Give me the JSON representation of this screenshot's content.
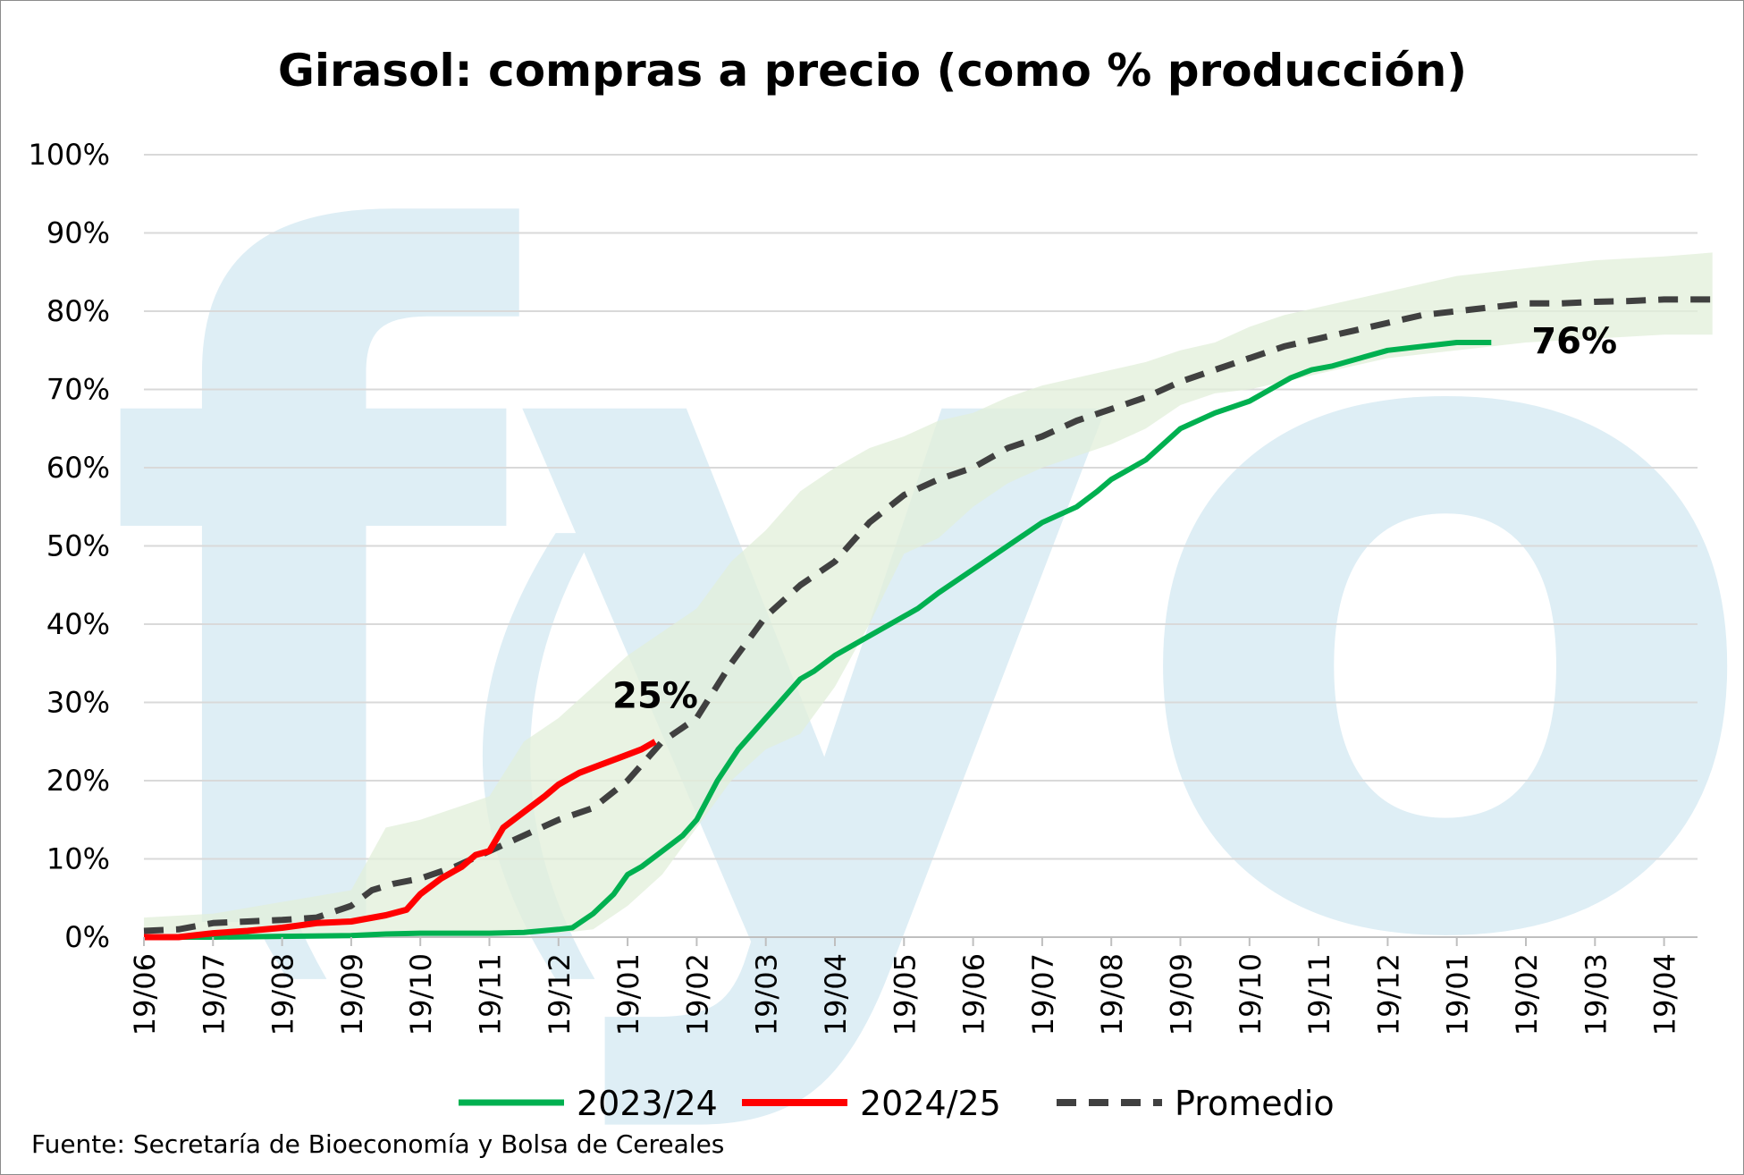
{
  "colors": {
    "s2023": "#00b050",
    "s2024": "#ff0000",
    "avg": "#404040",
    "band": "#e2efda",
    "watermark": "#deeef5",
    "grid": "#d9d9d9"
  },
  "source": "Fuente: Secretaría de Bioeconomía y Bolsa de Cereales",
  "watermark": "fyo",
  "chart_data": {
    "type": "line",
    "title": "Girasol: compras a precio (como % producción)",
    "xlabel": "",
    "ylabel": "",
    "ylim": [
      0,
      100
    ],
    "yticks": [
      "0%",
      "10%",
      "20%",
      "30%",
      "40%",
      "50%",
      "60%",
      "70%",
      "80%",
      "90%",
      "100%"
    ],
    "xticks": [
      "19/06",
      "19/07",
      "19/08",
      "19/09",
      "19/10",
      "19/11",
      "19/12",
      "19/01",
      "19/02",
      "19/03",
      "19/04",
      "19/05",
      "19/06",
      "19/07",
      "19/08",
      "19/09",
      "19/10",
      "19/11",
      "19/12",
      "19/01",
      "19/02",
      "19/03",
      "19/04"
    ],
    "xlim": [
      0,
      22.7
    ],
    "legend_position": "bottom",
    "grid": true,
    "series": [
      {
        "name": "2023/24",
        "x": [
          0,
          0.5,
          1,
          2,
          3,
          3.5,
          4,
          5,
          5.5,
          6,
          6.2,
          6.5,
          6.8,
          7,
          7.2,
          7.5,
          7.8,
          8,
          8.3,
          8.6,
          9,
          9.2,
          9.5,
          9.7,
          10,
          10.5,
          11,
          11.2,
          11.5,
          12,
          12.5,
          13,
          13.5,
          13.8,
          14,
          14.5,
          15,
          15.5,
          16,
          16.3,
          16.6,
          16.9,
          17.2,
          17.6,
          18,
          18.5,
          19,
          19.5
        ],
        "values": [
          0,
          0,
          0,
          0.1,
          0.2,
          0.4,
          0.5,
          0.5,
          0.6,
          1,
          1.2,
          3,
          5.5,
          8,
          9,
          11,
          13,
          15,
          20,
          24,
          28,
          30,
          33,
          34,
          36,
          38.5,
          41,
          42,
          44,
          47,
          50,
          53,
          55,
          57,
          58.5,
          61,
          65,
          67,
          68.5,
          70,
          71.5,
          72.5,
          73,
          74,
          75,
          75.5,
          76,
          76
        ]
      },
      {
        "name": "2024/25",
        "x": [
          0,
          0.5,
          1,
          1.5,
          2,
          2.5,
          3,
          3.5,
          3.8,
          4,
          4.3,
          4.6,
          4.8,
          5,
          5.2,
          5.5,
          5.8,
          6,
          6.3,
          6.6,
          6.9,
          7.2,
          7.4
        ],
        "values": [
          0,
          0,
          0.5,
          0.8,
          1.2,
          1.8,
          2,
          2.8,
          3.5,
          5.5,
          7.5,
          9,
          10.5,
          11,
          14,
          16,
          18,
          19.5,
          21,
          22,
          23,
          24,
          25
        ]
      },
      {
        "name": "Promedio",
        "x": [
          0,
          0.5,
          1,
          1.5,
          2,
          2.5,
          3,
          3.3,
          3.6,
          4,
          4.5,
          5,
          5.5,
          6,
          6.5,
          7,
          7.5,
          8,
          8.5,
          9,
          9.5,
          10,
          10.5,
          11,
          11.5,
          12,
          12.5,
          13,
          13.5,
          14,
          14.5,
          15,
          15.5,
          16,
          16.5,
          17,
          17.5,
          18,
          18.5,
          19,
          19.5,
          20,
          20.5,
          21,
          21.5,
          22,
          22.7
        ],
        "values": [
          0.8,
          1,
          1.8,
          2,
          2.2,
          2.5,
          4,
          6,
          6.8,
          7.5,
          9,
          11,
          13,
          15,
          16.5,
          20,
          25,
          28,
          35,
          41,
          45,
          48,
          53,
          56.5,
          58.5,
          60,
          62.5,
          64,
          66,
          67.5,
          69,
          71,
          72.5,
          74,
          75.5,
          76.5,
          77.5,
          78.5,
          79.5,
          80,
          80.5,
          81,
          81,
          81.2,
          81.3,
          81.5,
          81.5
        ]
      }
    ],
    "range_band": {
      "x": [
        0,
        1,
        2,
        3,
        3.5,
        4,
        5,
        5.5,
        6,
        6.5,
        7,
        7.5,
        8,
        8.5,
        9,
        9.5,
        10,
        10.5,
        11,
        11.5,
        12,
        12.5,
        13,
        13.5,
        14,
        14.5,
        15,
        15.5,
        16,
        16.5,
        17,
        17.5,
        18,
        18.5,
        19,
        19.5,
        20,
        21,
        22,
        22.7
      ],
      "upper": [
        2.5,
        3,
        4.5,
        6,
        14,
        15,
        18,
        25,
        28,
        32,
        36,
        39,
        42,
        48,
        52,
        57,
        60,
        62.5,
        64,
        66,
        67,
        69,
        70.5,
        71.5,
        72.5,
        73.5,
        75,
        76,
        78,
        79.5,
        80.5,
        81.5,
        82.5,
        83.5,
        84.5,
        85,
        85.5,
        86.5,
        87,
        87.5
      ],
      "lower": [
        0,
        0,
        0,
        0,
        0,
        0.2,
        0.3,
        0.4,
        0.5,
        1,
        4,
        8,
        14,
        20,
        24,
        26,
        32,
        40,
        49,
        51,
        55,
        58,
        60,
        61.5,
        63,
        65,
        68,
        69.5,
        70,
        71,
        72,
        73,
        74,
        74.5,
        75,
        75.5,
        76,
        76.5,
        77,
        77
      ]
    },
    "annotations": [
      {
        "text": "25%",
        "x": 7.4,
        "y": 25,
        "series": "2024/25"
      },
      {
        "text": "76%",
        "x": 19.5,
        "y": 76,
        "series": "2023/24"
      }
    ]
  }
}
